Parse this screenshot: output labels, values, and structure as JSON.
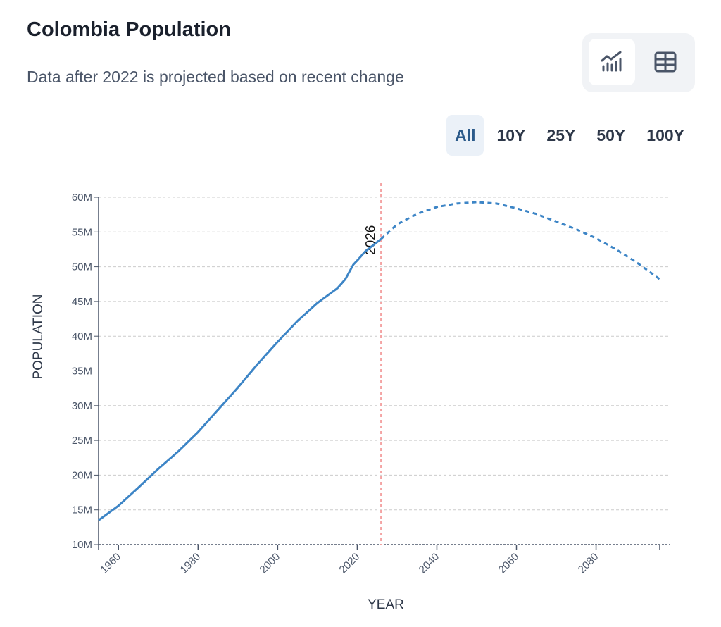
{
  "header": {
    "title": "Colombia Population",
    "subtitle": "Data after 2022 is projected based on recent change"
  },
  "view_toggle": [
    {
      "icon": "line-chart-icon",
      "active": true
    },
    {
      "icon": "table-icon",
      "active": false
    }
  ],
  "ranges": [
    {
      "label": "All",
      "active": true
    },
    {
      "label": "10Y",
      "active": false
    },
    {
      "label": "25Y",
      "active": false
    },
    {
      "label": "50Y",
      "active": false
    },
    {
      "label": "100Y",
      "active": false
    }
  ],
  "chart_data": {
    "type": "line",
    "title": "",
    "xlabel": "YEAR",
    "ylabel": "POPULATION",
    "xlim": [
      1955,
      2096
    ],
    "ylim": [
      10,
      60
    ],
    "y_unit": "M",
    "x_ticks": [
      1960,
      1980,
      2000,
      2020,
      2040,
      2060,
      2080
    ],
    "y_ticks": [
      "10M",
      "15M",
      "20M",
      "25M",
      "30M",
      "35M",
      "40M",
      "45M",
      "50M",
      "55M",
      "60M"
    ],
    "grid": true,
    "line_color": "#3d85c6",
    "marker_color": "#f4a3a3",
    "marker": {
      "year": 2026,
      "label": "2026"
    },
    "series": [
      {
        "style": "solid",
        "x": [
          1955,
          1960,
          1965,
          1970,
          1975,
          1980,
          1985,
          1990,
          1995,
          2000,
          2005,
          2010,
          2015,
          2017,
          2019,
          2020,
          2022,
          2026
        ],
        "values": [
          13.5,
          15.6,
          18.2,
          20.9,
          23.4,
          26.2,
          29.4,
          32.6,
          36.0,
          39.2,
          42.2,
          44.8,
          46.9,
          48.2,
          50.3,
          50.9,
          52.2,
          54.0
        ]
      },
      {
        "style": "dashed",
        "x": [
          2026,
          2030,
          2035,
          2040,
          2045,
          2050,
          2055,
          2060,
          2065,
          2070,
          2075,
          2080,
          2085,
          2090,
          2096
        ],
        "values": [
          54.0,
          56.1,
          57.6,
          58.6,
          59.1,
          59.3,
          59.1,
          58.4,
          57.6,
          56.5,
          55.4,
          54.1,
          52.5,
          50.7,
          48.2
        ]
      }
    ]
  }
}
